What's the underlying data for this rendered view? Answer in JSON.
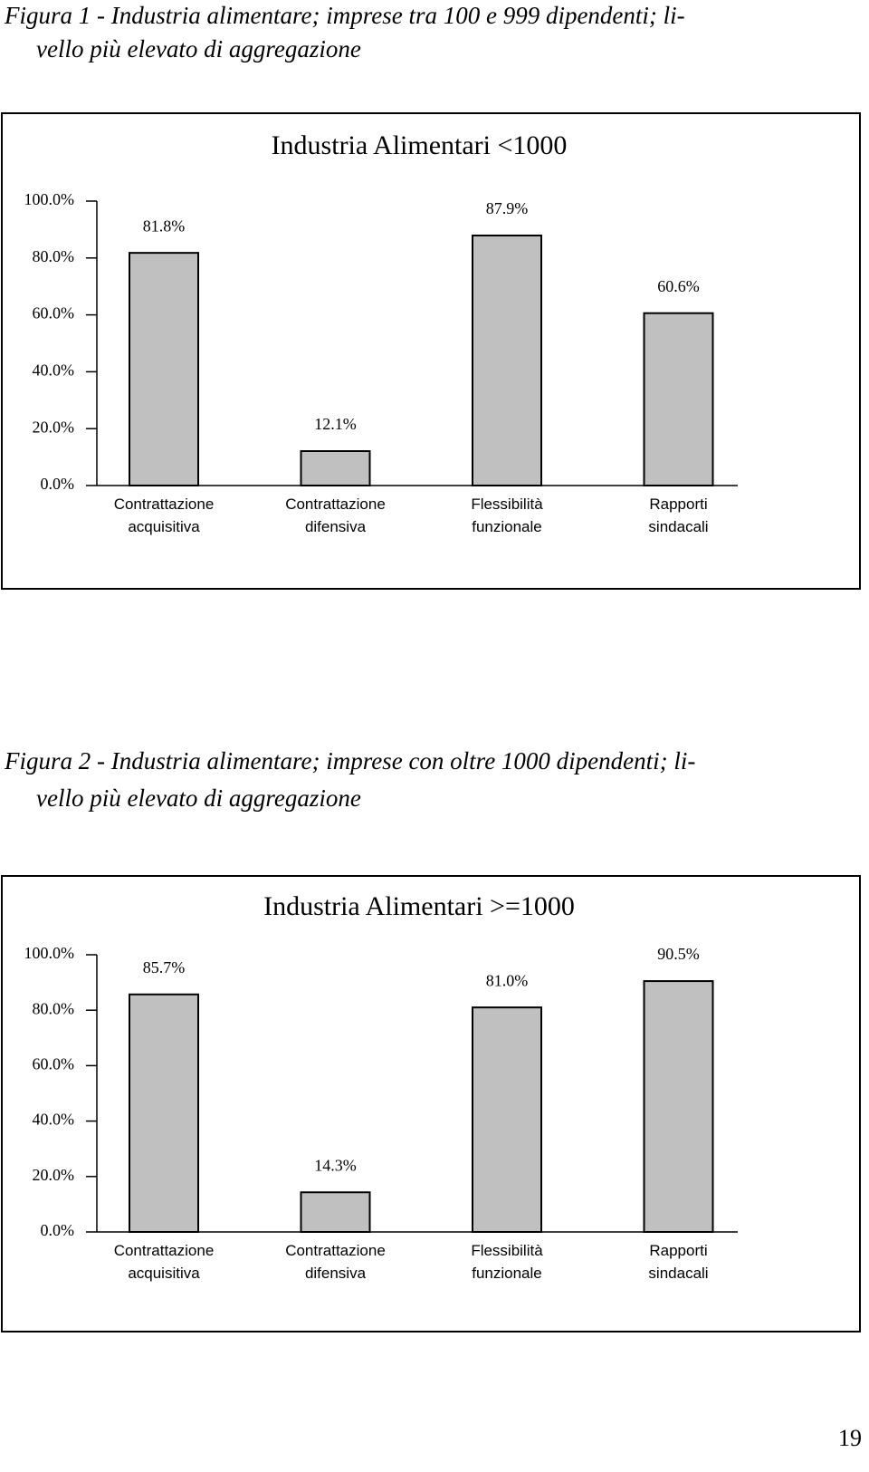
{
  "captions": [
    [
      "Figura 1 - Industria alimentare; imprese tra 100 e 999 dipendenti; li-",
      "vello più elevato di aggregazione"
    ],
    [
      "Figura 2 - Industria alimentare; imprese con oltre 1000 dipendenti; li-",
      "vello più elevato di aggregazione"
    ]
  ],
  "chart_data": [
    {
      "type": "bar",
      "title": "Industria Alimentari <1000",
      "categories": [
        "Contrattazione acquisitiva",
        "Contrattazione difensiva",
        "Flessibilità funzionale",
        "Rapporti sindacali"
      ],
      "values": [
        81.8,
        12.1,
        87.9,
        60.6
      ],
      "value_labels": [
        "81.8%",
        "12.1%",
        "87.9%",
        "60.6%"
      ],
      "color": "#c0c0c0",
      "ylim": [
        0,
        100
      ],
      "yticks": [
        {
          "value": 0,
          "label": "0.0%"
        },
        {
          "value": 20,
          "label": "20.0%"
        },
        {
          "value": 40,
          "label": "40.0%"
        },
        {
          "value": 60,
          "label": "60.0%"
        },
        {
          "value": 80,
          "label": "80.0%"
        },
        {
          "value": 100,
          "label": "100.0%"
        }
      ]
    },
    {
      "type": "bar",
      "title": "Industria Alimentari >=1000",
      "categories": [
        "Contrattazione acquisitiva",
        "Contrattazione difensiva",
        "Flessibilità funzionale",
        "Rapporti sindacali"
      ],
      "values": [
        85.7,
        14.3,
        81.0,
        90.5
      ],
      "value_labels": [
        "85.7%",
        "14.3%",
        "81.0%",
        "90.5%"
      ],
      "color": "#c0c0c0",
      "ylim": [
        0,
        100
      ],
      "yticks": [
        {
          "value": 0,
          "label": "0.0%"
        },
        {
          "value": 20,
          "label": "20.0%"
        },
        {
          "value": 40,
          "label": "40.0%"
        },
        {
          "value": 60,
          "label": "60.0%"
        },
        {
          "value": 80,
          "label": "80.0%"
        },
        {
          "value": 100,
          "label": "100.0%"
        }
      ]
    }
  ],
  "page_number": "19"
}
